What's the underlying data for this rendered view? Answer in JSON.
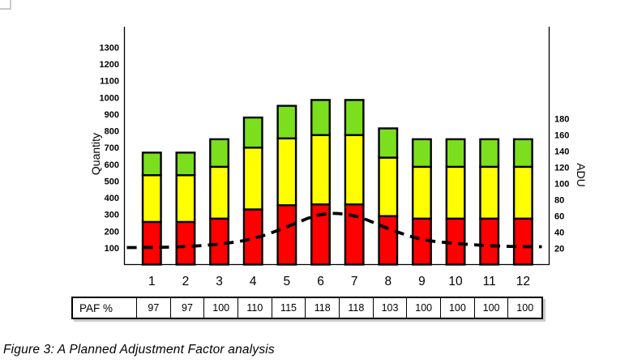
{
  "page": {
    "background": "#ffffff",
    "caption": "Figure 3: A Planned Adjustment Factor analysis"
  },
  "chart_data": {
    "type": "bar",
    "stacked": true,
    "grid": false,
    "legend": false,
    "title": "",
    "categories": [
      "1",
      "2",
      "3",
      "4",
      "5",
      "6",
      "7",
      "8",
      "9",
      "10",
      "11",
      "12"
    ],
    "series": [
      {
        "name": "red-zone",
        "color": "#ff0000",
        "values": [
          255,
          255,
          275,
          330,
          355,
          360,
          360,
          290,
          275,
          275,
          275,
          275
        ]
      },
      {
        "name": "yellow-zone",
        "color": "#ffff00",
        "values": [
          280,
          280,
          310,
          370,
          400,
          415,
          415,
          350,
          310,
          310,
          310,
          310
        ]
      },
      {
        "name": "green-zone",
        "color": "#7cdf1e",
        "values": [
          135,
          135,
          165,
          180,
          195,
          210,
          210,
          175,
          165,
          165,
          165,
          165
        ]
      }
    ],
    "stack_totals": [
      670,
      670,
      750,
      880,
      950,
      985,
      985,
      815,
      750,
      750,
      750,
      750
    ],
    "line_series": {
      "name": "ADU",
      "axis": "right",
      "style": "dashed",
      "color": "#000000",
      "values": [
        21,
        22,
        25,
        31,
        46,
        64,
        62,
        44,
        30,
        26,
        23,
        22
      ]
    },
    "left_axis": {
      "label": "Quantity",
      "min": 0,
      "max": 1300,
      "tick_step": 100,
      "ticks": [
        100,
        200,
        300,
        400,
        500,
        600,
        700,
        800,
        900,
        1000,
        1100,
        1200,
        1300
      ]
    },
    "right_axis": {
      "label": "ADU",
      "min": 0,
      "max": 180,
      "tick_step": 20,
      "ticks": [
        20,
        40,
        60,
        80,
        100,
        120,
        140,
        160,
        180
      ]
    },
    "bar_border_color": "#000000"
  },
  "table": {
    "row_header": "PAF %",
    "values": [
      "97",
      "97",
      "100",
      "110",
      "115",
      "118",
      "118",
      "103",
      "100",
      "100",
      "100",
      "100"
    ]
  }
}
